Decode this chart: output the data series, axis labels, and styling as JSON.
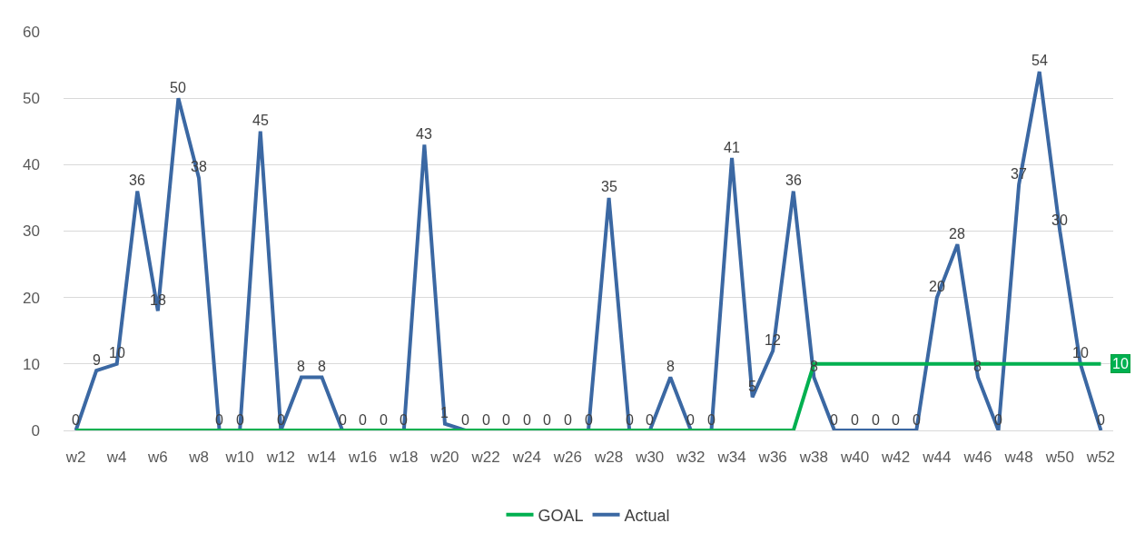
{
  "chart_data": {
    "type": "line",
    "categories": [
      "w2",
      null,
      "w4",
      null,
      "w6",
      null,
      "w8",
      null,
      "w10",
      null,
      "w12",
      null,
      "w14",
      null,
      "w16",
      null,
      "w18",
      null,
      "w20",
      null,
      "w22",
      null,
      "w24",
      null,
      "w26",
      null,
      "w28",
      null,
      "w30",
      null,
      "w32",
      null,
      "w34",
      null,
      "w36",
      null,
      "w38",
      null,
      "w40",
      null,
      "w42",
      null,
      "w44",
      null,
      "w46",
      null,
      "w48",
      null,
      "w50",
      null,
      "w52"
    ],
    "series": [
      {
        "name": "GOAL",
        "color": "#00b050",
        "values": [
          0,
          0,
          0,
          0,
          0,
          0,
          0,
          0,
          0,
          0,
          0,
          0,
          0,
          0,
          0,
          0,
          0,
          0,
          0,
          0,
          0,
          0,
          0,
          0,
          0,
          0,
          0,
          0,
          0,
          0,
          0,
          0,
          0,
          0,
          0,
          0,
          10,
          10,
          10,
          10,
          10,
          10,
          10,
          10,
          10,
          10,
          10,
          10,
          10,
          10,
          10
        ],
        "value_labels": [
          null,
          null,
          null,
          null,
          null,
          null,
          null,
          null,
          null,
          null,
          null,
          null,
          null,
          null,
          null,
          null,
          null,
          null,
          null,
          null,
          null,
          null,
          null,
          null,
          null,
          null,
          null,
          null,
          null,
          null,
          null,
          null,
          null,
          null,
          null,
          null,
          null,
          null,
          null,
          null,
          null,
          null,
          null,
          null,
          null,
          null,
          null,
          null,
          null,
          null,
          "10"
        ]
      },
      {
        "name": "Actual",
        "color": "#3b68a3",
        "values": [
          0,
          9,
          10,
          36,
          18,
          50,
          38,
          0,
          0,
          45,
          0,
          8,
          8,
          0,
          0,
          0,
          0,
          43,
          1,
          0,
          0,
          0,
          0,
          0,
          0,
          0,
          35,
          0,
          0,
          8,
          0,
          0,
          41,
          5,
          12,
          36,
          8,
          0,
          0,
          0,
          0,
          0,
          20,
          28,
          8,
          0,
          37,
          54,
          30,
          10,
          0
        ],
        "value_labels": [
          "0",
          "9",
          "10",
          "36",
          "18",
          "50",
          "38",
          "0",
          "0",
          "45",
          "0",
          "8",
          "8",
          "0",
          "0",
          "0",
          "0",
          "43",
          "1",
          "0",
          "0",
          "0",
          "0",
          "0",
          "0",
          "0",
          "35",
          "0",
          "0",
          "8",
          "0",
          "0",
          "41",
          "5",
          "12",
          "36",
          "8",
          "0",
          "0",
          "0",
          "0",
          "0",
          "20",
          "28",
          "8",
          "0",
          "37",
          "54",
          "30",
          "10",
          "0"
        ]
      }
    ],
    "ylim": [
      0,
      60
    ],
    "yticks": [
      0,
      10,
      20,
      30,
      40,
      50,
      60
    ],
    "grid": "y",
    "legend": "bottom",
    "line_style": "solid"
  }
}
